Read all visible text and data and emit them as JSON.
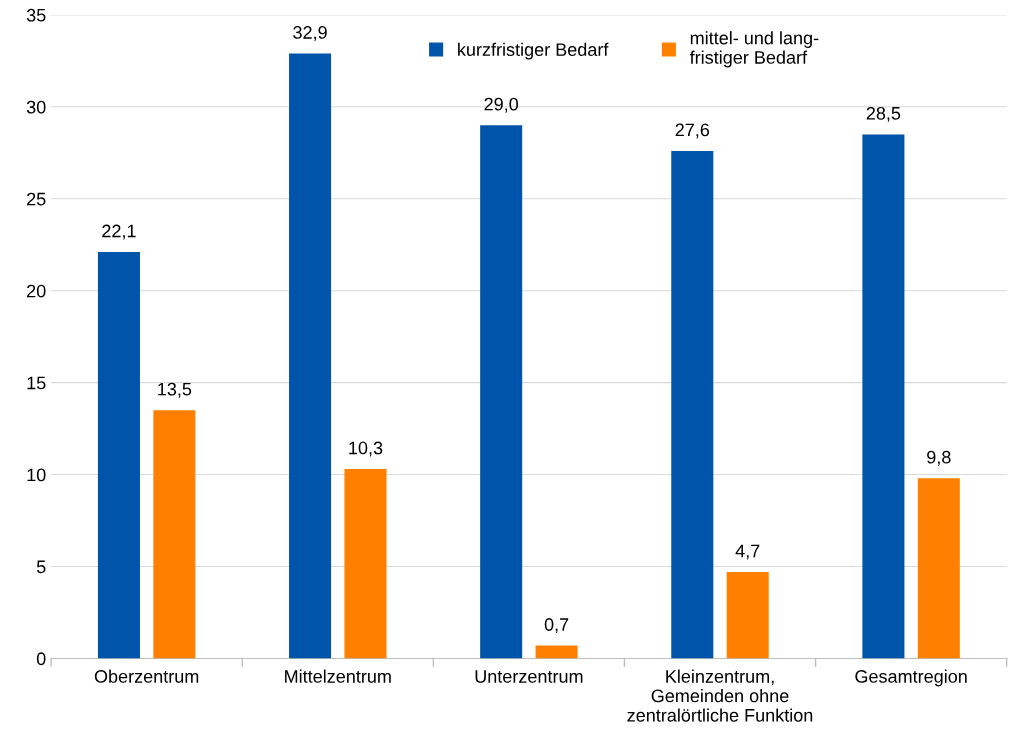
{
  "chart_data": {
    "type": "bar",
    "categories": [
      "Oberzentrum",
      "Mittelzentrum",
      "Unterzentrum",
      "Kleinzentrum,\nGemeinden ohne\nzentralörtliche Funktion",
      "Gesamtregion"
    ],
    "series": [
      {
        "name": "kurzfristiger Bedarf",
        "color": "#0055aa",
        "values": [
          22.1,
          32.9,
          29.0,
          27.6,
          28.5
        ],
        "value_labels": [
          "22,1",
          "32,9",
          "29,0",
          "27,6",
          "28,5"
        ]
      },
      {
        "name": "mittel- und lang-\nfristiger Bedarf",
        "color": "#ff8000",
        "values": [
          13.5,
          10.3,
          0.7,
          4.7,
          9.8
        ],
        "value_labels": [
          "13,5",
          "10,3",
          "0,7",
          "4,7",
          "9,8"
        ]
      }
    ],
    "ylim": [
      0,
      35
    ],
    "yticks": [
      0,
      5,
      10,
      15,
      20,
      25,
      30,
      35
    ],
    "grid": "y",
    "legend": "top"
  }
}
